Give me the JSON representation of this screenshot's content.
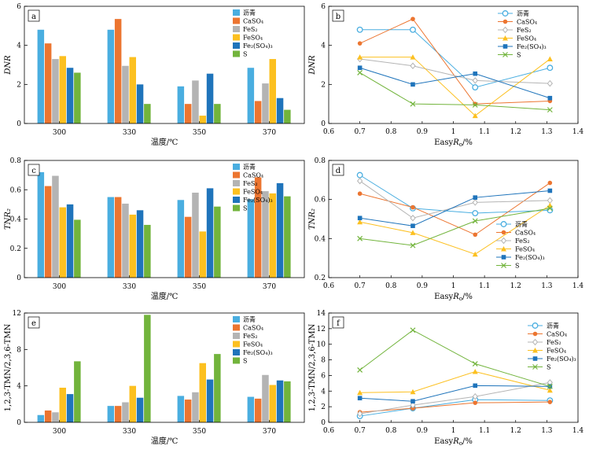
{
  "colors": {
    "asphalt": "#4aaee0",
    "caso4": "#ec7530",
    "fes2": "#b4b4b4",
    "feso4": "#fcc020",
    "fe2so43": "#1f74bb",
    "s": "#72b43c"
  },
  "chart_data": [
    {
      "panel": "a",
      "type": "bar",
      "categories": [
        "300",
        "330",
        "350",
        "370"
      ],
      "xlabel": "温度/℃",
      "ylabel": "DNR",
      "ylim": [
        0,
        6
      ],
      "yticks": [
        0,
        2,
        4,
        6
      ],
      "legend_position": "top-right",
      "series": [
        {
          "name": "沥青",
          "key": "asphalt",
          "values": [
            4.8,
            4.8,
            1.9,
            2.85
          ]
        },
        {
          "name": "CaSO₄",
          "key": "caso4",
          "values": [
            4.1,
            5.35,
            1.0,
            1.15
          ]
        },
        {
          "name": "FeS₂",
          "key": "fes2",
          "values": [
            3.3,
            2.95,
            2.2,
            2.05
          ]
        },
        {
          "name": "FeSO₄",
          "key": "feso4",
          "values": [
            3.45,
            3.4,
            0.4,
            3.3
          ]
        },
        {
          "name": "Fe₂(SO₄)₃",
          "key": "fe2so43",
          "values": [
            2.85,
            2.0,
            2.55,
            1.3
          ]
        },
        {
          "name": "S",
          "key": "s",
          "values": [
            2.6,
            1.0,
            1.0,
            0.7
          ]
        }
      ]
    },
    {
      "panel": "b",
      "type": "line",
      "x": [
        0.7,
        0.87,
        1.07,
        1.31
      ],
      "xlabel": "EasyRo/%",
      "ylabel": "DNR",
      "xlim": [
        0.6,
        1.4
      ],
      "ylim": [
        0,
        6
      ],
      "xticks": [
        0.6,
        0.7,
        0.8,
        0.9,
        1.0,
        1.1,
        1.2,
        1.3,
        1.4
      ],
      "yticks": [
        0,
        2,
        4,
        6
      ],
      "legend_position": "top-right",
      "series": [
        {
          "name": "沥青",
          "key": "asphalt",
          "marker": "circle",
          "values": [
            4.8,
            4.8,
            1.85,
            2.85
          ]
        },
        {
          "name": "CaSO₄",
          "key": "caso4",
          "marker": "dot",
          "values": [
            4.1,
            5.35,
            1.0,
            1.15
          ]
        },
        {
          "name": "FeS₂",
          "key": "fes2",
          "marker": "diamond",
          "values": [
            3.3,
            2.95,
            2.2,
            2.05
          ]
        },
        {
          "name": "FeSO₄",
          "key": "feso4",
          "marker": "triangle",
          "values": [
            3.4,
            3.4,
            0.4,
            3.3
          ]
        },
        {
          "name": "Fe₂(SO₄)₃",
          "key": "fe2so43",
          "marker": "square",
          "values": [
            2.85,
            2.0,
            2.55,
            1.3
          ]
        },
        {
          "name": "S",
          "key": "s",
          "marker": "x",
          "values": [
            2.6,
            1.0,
            0.95,
            0.7
          ]
        }
      ]
    },
    {
      "panel": "c",
      "type": "bar",
      "categories": [
        "300",
        "330",
        "350",
        "370"
      ],
      "xlabel": "温度/℃",
      "ylabel": "TNR₂",
      "ylim": [
        0,
        0.8
      ],
      "yticks": [
        0,
        0.2,
        0.4,
        0.6,
        0.8
      ],
      "legend_position": "top-right",
      "series": [
        {
          "name": "沥青",
          "key": "asphalt",
          "values": [
            0.72,
            0.55,
            0.53,
            0.535
          ]
        },
        {
          "name": "CaSO₄",
          "key": "caso4",
          "values": [
            0.625,
            0.55,
            0.415,
            0.685
          ]
        },
        {
          "name": "FeS₂",
          "key": "fes2",
          "values": [
            0.695,
            0.505,
            0.58,
            0.59
          ]
        },
        {
          "name": "FeSO₄",
          "key": "feso4",
          "values": [
            0.48,
            0.43,
            0.315,
            0.575
          ]
        },
        {
          "name": "Fe₂(SO₄)₃",
          "key": "fe2so43",
          "values": [
            0.5,
            0.46,
            0.61,
            0.645
          ]
        },
        {
          "name": "S",
          "key": "s",
          "values": [
            0.395,
            0.36,
            0.485,
            0.555
          ]
        }
      ]
    },
    {
      "panel": "d",
      "type": "line",
      "x": [
        0.7,
        0.87,
        1.07,
        1.31
      ],
      "xlabel": "EasyRo/%",
      "ylabel": "TNR₂",
      "xlim": [
        0.6,
        1.4
      ],
      "ylim": [
        0.2,
        0.8
      ],
      "xticks": [
        0.6,
        0.7,
        0.8,
        0.9,
        1.0,
        1.1,
        1.2,
        1.3,
        1.4
      ],
      "yticks": [
        0.2,
        0.4,
        0.6,
        0.8
      ],
      "legend_position": "bottom-right",
      "series": [
        {
          "name": "沥青",
          "key": "asphalt",
          "marker": "circle",
          "values": [
            0.725,
            0.555,
            0.53,
            0.545
          ]
        },
        {
          "name": "CaSO₄",
          "key": "caso4",
          "marker": "dot",
          "values": [
            0.63,
            0.56,
            0.42,
            0.685
          ]
        },
        {
          "name": "FeS₂",
          "key": "fes2",
          "marker": "diamond",
          "values": [
            0.695,
            0.505,
            0.585,
            0.595
          ]
        },
        {
          "name": "FeSO₄",
          "key": "feso4",
          "marker": "triangle",
          "values": [
            0.485,
            0.43,
            0.32,
            0.57
          ]
        },
        {
          "name": "Fe₂(SO₄)₃",
          "key": "fe2so43",
          "marker": "square",
          "values": [
            0.505,
            0.465,
            0.61,
            0.645
          ]
        },
        {
          "name": "S",
          "key": "s",
          "marker": "x",
          "values": [
            0.4,
            0.365,
            0.49,
            0.555
          ]
        }
      ]
    },
    {
      "panel": "e",
      "type": "bar",
      "categories": [
        "300",
        "330",
        "350",
        "370"
      ],
      "xlabel": "温度/℃",
      "ylabel": "1,2,3-TMN/2,3,6-TMN",
      "ylim": [
        0,
        12
      ],
      "yticks": [
        0,
        4,
        8,
        12
      ],
      "legend_position": "top-left",
      "series": [
        {
          "name": "沥青",
          "key": "asphalt",
          "values": [
            0.8,
            1.8,
            2.9,
            2.8
          ]
        },
        {
          "name": "CaSO₄",
          "key": "caso4",
          "values": [
            1.3,
            1.8,
            2.5,
            2.6
          ]
        },
        {
          "name": "FeS₂",
          "key": "fes2",
          "values": [
            1.1,
            2.2,
            3.3,
            5.2
          ]
        },
        {
          "name": "FeSO₄",
          "key": "feso4",
          "values": [
            3.8,
            4.0,
            6.5,
            4.1
          ]
        },
        {
          "name": "Fe₂(SO₄)₃",
          "key": "fe2so43",
          "values": [
            3.1,
            2.7,
            4.7,
            4.6
          ]
        },
        {
          "name": "S",
          "key": "s",
          "values": [
            6.7,
            11.8,
            7.5,
            4.5
          ]
        }
      ]
    },
    {
      "panel": "f",
      "type": "line",
      "x": [
        0.7,
        0.87,
        1.07,
        1.31
      ],
      "xlabel": "EasyRo/%",
      "ylabel": "1,2,3-TMN/2,3,6-TMN",
      "xlim": [
        0.6,
        1.4
      ],
      "ylim": [
        0,
        14
      ],
      "xticks": [
        0.6,
        0.7,
        0.8,
        0.9,
        1.0,
        1.1,
        1.2,
        1.3,
        1.4
      ],
      "yticks": [
        0,
        2,
        4,
        6,
        8,
        10,
        12,
        14
      ],
      "legend_position": "top-right",
      "series": [
        {
          "name": "沥青",
          "key": "asphalt",
          "marker": "circle",
          "values": [
            0.8,
            1.8,
            2.9,
            2.8
          ]
        },
        {
          "name": "CaSO₄",
          "key": "caso4",
          "marker": "dot",
          "values": [
            1.3,
            1.8,
            2.5,
            2.6
          ]
        },
        {
          "name": "FeS₂",
          "key": "fes2",
          "marker": "diamond",
          "values": [
            1.1,
            2.2,
            3.3,
            5.1
          ]
        },
        {
          "name": "FeSO₄",
          "key": "feso4",
          "marker": "triangle",
          "values": [
            3.8,
            3.9,
            6.5,
            4.1
          ]
        },
        {
          "name": "Fe₂(SO₄)₃",
          "key": "fe2so43",
          "marker": "square",
          "values": [
            3.1,
            2.7,
            4.7,
            4.6
          ]
        },
        {
          "name": "S",
          "key": "s",
          "marker": "x",
          "values": [
            6.7,
            11.8,
            7.5,
            4.6
          ]
        }
      ]
    }
  ]
}
